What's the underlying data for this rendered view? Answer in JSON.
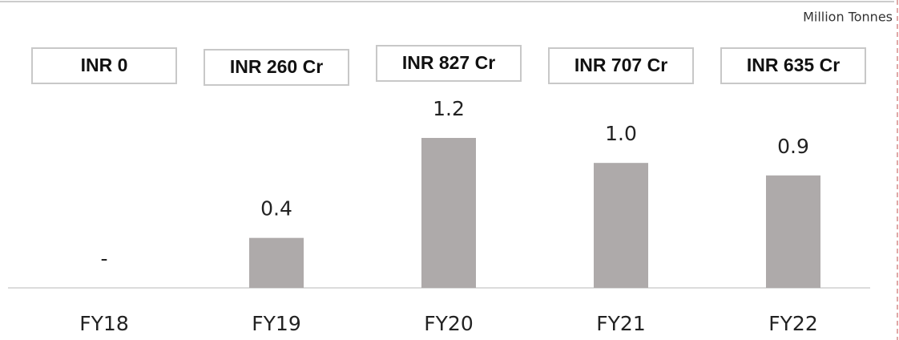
{
  "chart_data": {
    "type": "bar",
    "unit_label": "Million Tonnes",
    "categories": [
      "FY18",
      "FY19",
      "FY20",
      "FY21",
      "FY22"
    ],
    "values": [
      0,
      0.4,
      1.2,
      1.0,
      0.9
    ],
    "value_labels": [
      "-",
      "0.4",
      "1.2",
      "1.0",
      "0.9"
    ],
    "annotations": [
      "INR 0",
      "INR 260 Cr",
      "INR 827 Cr",
      "INR 707 Cr",
      "INR 635 Cr"
    ],
    "color": "#aeaaaa"
  }
}
